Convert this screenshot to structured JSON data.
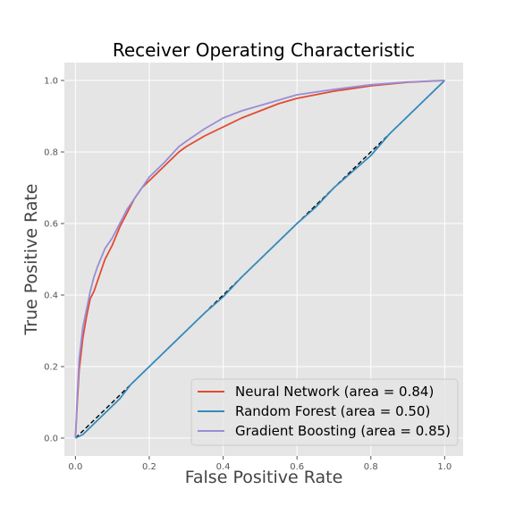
{
  "chart_data": {
    "type": "line",
    "title": "Receiver Operating Characteristic",
    "xlabel": "False Positive Rate",
    "ylabel": "True Positive Rate",
    "xlim": [
      -0.03,
      1.05
    ],
    "ylim": [
      -0.05,
      1.05
    ],
    "xticks": [
      0.0,
      0.2,
      0.4,
      0.6,
      0.8,
      1.0
    ],
    "yticks": [
      0.0,
      0.2,
      0.4,
      0.6,
      0.8,
      1.0
    ],
    "xtick_labels": [
      "0.0",
      "0.2",
      "0.4",
      "0.6",
      "0.8",
      "1.0"
    ],
    "ytick_labels": [
      "0.0",
      "0.2",
      "0.4",
      "0.6",
      "0.8",
      "1.0"
    ],
    "grid": true,
    "legend_position": "lower-right",
    "diagonal": {
      "x": [
        0.0,
        1.0
      ],
      "y": [
        0.0,
        1.0
      ],
      "color": "#000000",
      "style": "dashed"
    },
    "series": [
      {
        "name": "Neural Network (area = 0.84)",
        "color": "#e24a33",
        "x": [
          0.0,
          0.005,
          0.01,
          0.02,
          0.03,
          0.04,
          0.05,
          0.06,
          0.08,
          0.1,
          0.12,
          0.14,
          0.16,
          0.18,
          0.2,
          0.24,
          0.28,
          0.3,
          0.35,
          0.4,
          0.45,
          0.5,
          0.55,
          0.6,
          0.7,
          0.8,
          0.9,
          1.0
        ],
        "y": [
          0.0,
          0.1,
          0.19,
          0.28,
          0.34,
          0.39,
          0.41,
          0.44,
          0.5,
          0.54,
          0.59,
          0.63,
          0.67,
          0.7,
          0.72,
          0.76,
          0.8,
          0.815,
          0.845,
          0.87,
          0.895,
          0.915,
          0.935,
          0.95,
          0.97,
          0.985,
          0.995,
          1.0
        ]
      },
      {
        "name": "Random Forest (area = 0.50)",
        "color": "#348abd",
        "x": [
          0.0,
          0.02,
          0.05,
          0.08,
          0.12,
          0.15,
          0.2,
          0.25,
          0.3,
          0.35,
          0.4,
          0.45,
          0.5,
          0.55,
          0.6,
          0.65,
          0.7,
          0.75,
          0.8,
          0.85,
          0.9,
          0.95,
          1.0
        ],
        "y": [
          0.0,
          0.01,
          0.04,
          0.07,
          0.11,
          0.15,
          0.2,
          0.25,
          0.3,
          0.35,
          0.395,
          0.45,
          0.5,
          0.55,
          0.6,
          0.645,
          0.7,
          0.745,
          0.79,
          0.85,
          0.9,
          0.95,
          1.0
        ]
      },
      {
        "name": "Gradient Boosting (area = 0.85)",
        "color": "#988ed5",
        "x": [
          0.0,
          0.005,
          0.01,
          0.02,
          0.03,
          0.04,
          0.05,
          0.06,
          0.08,
          0.1,
          0.12,
          0.14,
          0.16,
          0.18,
          0.2,
          0.24,
          0.28,
          0.3,
          0.35,
          0.4,
          0.45,
          0.5,
          0.55,
          0.6,
          0.7,
          0.8,
          0.9,
          1.0
        ],
        "y": [
          0.0,
          0.12,
          0.22,
          0.31,
          0.36,
          0.41,
          0.45,
          0.48,
          0.53,
          0.56,
          0.6,
          0.64,
          0.67,
          0.7,
          0.73,
          0.77,
          0.815,
          0.83,
          0.865,
          0.895,
          0.915,
          0.93,
          0.945,
          0.96,
          0.975,
          0.988,
          0.996,
          1.0
        ]
      }
    ]
  }
}
